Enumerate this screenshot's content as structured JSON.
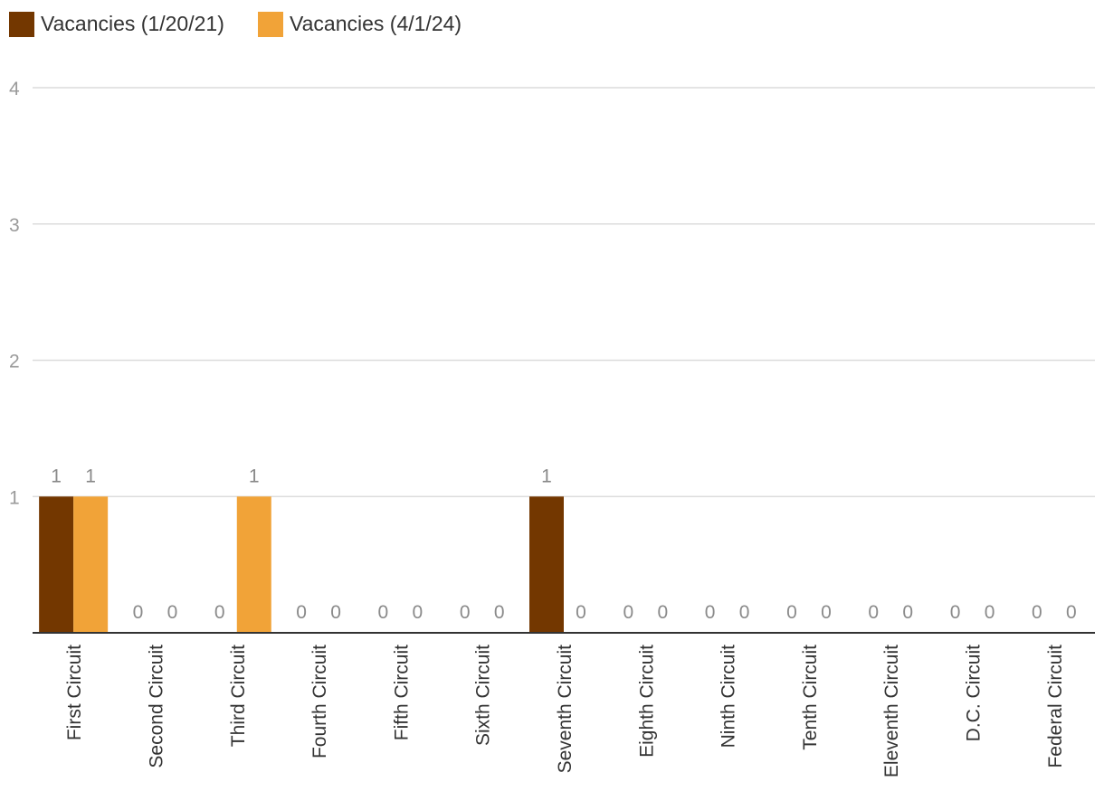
{
  "chart_data": {
    "type": "bar",
    "categories": [
      "First Circuit",
      "Second Circuit",
      "Third Circuit",
      "Fourth Circuit",
      "Fifth Circuit",
      "Sixth Circuit",
      "Seventh Circuit",
      "Eighth Circuit",
      "Ninth Circuit",
      "Tenth Circuit",
      "Eleventh Circuit",
      "D.C. Circuit",
      "Federal Circuit"
    ],
    "series": [
      {
        "name": "Vacancies (1/20/21)",
        "color": "#733700",
        "values": [
          1,
          0,
          0,
          0,
          0,
          0,
          1,
          0,
          0,
          0,
          0,
          0,
          0
        ]
      },
      {
        "name": "Vacancies (4/1/24)",
        "color": "#f1a338",
        "values": [
          1,
          0,
          1,
          0,
          0,
          0,
          0,
          0,
          0,
          0,
          0,
          0,
          0
        ]
      }
    ],
    "ylim": [
      0,
      4
    ],
    "yticks": [
      "1",
      "2",
      "3",
      "4"
    ],
    "grid": true,
    "legend": "top-left",
    "data_labels": true,
    "title": "",
    "xlabel": "",
    "ylabel": ""
  }
}
